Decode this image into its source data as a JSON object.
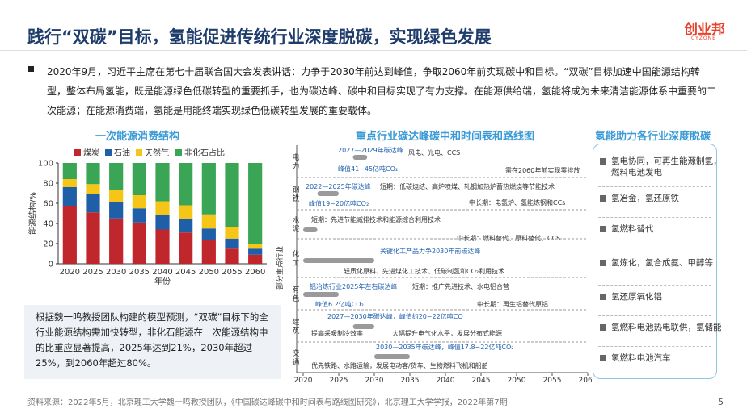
{
  "header": {
    "title": "践行“双碳”目标，氢能促进传统行业深度脱碳，实现绿色发展",
    "logo": "创业邦",
    "logo_sub": "CYZONE"
  },
  "intro": "2020年9月，习近平主席在第七十届联合国大会发表讲话：力争于2030年前达到峰值，争取2060年前实现碳中和目标。“双碳”目标加速中国能源结构转型，整体布局氢能，既是能源绿色低碳转型的重要抓手，也为碳达峰、碳中和目标实现了有力支撑。在能源供给端，氢能将成为未来清洁能源体系中重要的二次能源；在能源消费端，氢能是用能终端实现绿色低碳转型发展的重要载体。",
  "chart_data": {
    "type": "stacked_bar",
    "title": "一次能源消费结构",
    "x_label": "年份",
    "y_label": "能源结构/%",
    "categories": [
      "2020",
      "2025",
      "2030",
      "2035",
      "2040",
      "2045",
      "2050",
      "2055",
      "2060"
    ],
    "series": [
      {
        "name": "煤炭",
        "color": "#c0272d",
        "values": [
          57,
          51,
          45,
          41,
          34,
          31,
          24,
          15,
          9
        ]
      },
      {
        "name": "石油",
        "color": "#1f5fa8",
        "values": [
          19,
          18,
          16,
          14,
          14,
          13,
          11,
          10,
          6
        ]
      },
      {
        "name": "天然气",
        "color": "#f5c518",
        "values": [
          8,
          10,
          12,
          13,
          14,
          14,
          14,
          11,
          5
        ]
      },
      {
        "name": "非化石占比",
        "color": "#3aa655",
        "values": [
          16,
          21,
          27,
          32,
          38,
          42,
          51,
          64,
          80
        ]
      }
    ],
    "ylim": [
      0,
      100
    ],
    "yticks": [
      0,
      20,
      40,
      60,
      80,
      100
    ]
  },
  "note": "根据魏一鸣教授团队构建的模型预测，“双碳”目标下的全行业能源结构需加快转型，非化石能源在一次能源结构中的比重应显著提高，2025年达到21%，2030年超过25%，到2060年超过80%。",
  "roadmap": {
    "title": "重点行业碳达峰碳中和时间表和路线图",
    "y_label": "部分重点行业",
    "xticks": [
      2020,
      2025,
      2030,
      2035,
      2040,
      2045,
      2050,
      2055,
      2060
    ],
    "rows": [
      {
        "label": "电力",
        "texts": [
          "2027—2029年碳达峰",
          "风电、光电、CCS",
          "峰值41~45亿吨CO₂",
          "需在2060年前实现零排放"
        ]
      },
      {
        "label": "钢铁",
        "texts": [
          "2022—2025年碳达峰",
          "短期：低碳烧结、高炉喷煤、轧钢加热炉蓄热燃烧等节能技术",
          "峰值19~20亿吨CO₂",
          "中长期：电氢炉、氢能炼钢和CCs"
        ]
      },
      {
        "label": "水泥",
        "texts": [
          "短期：先进节能减排技术和能源综合利用技术",
          "中长期：燃料替代、原料替代、CCS"
        ]
      },
      {
        "label": "化工",
        "texts": [
          "关键化工产品力争2030年前碳达峰",
          "轻质化原料、先进煤化工技术、低碳制氢和CO₂利用技术"
        ]
      },
      {
        "label": "有色",
        "texts": [
          "铝冶炼行业2025年左右碳达峰",
          "短期：推广先进技术、水电铝合营",
          "峰值6.2亿吨CO₂",
          "中长期：再生铝替代原铝"
        ]
      },
      {
        "label": "建筑",
        "texts": [
          "2027—2030年碳达峰，峰值约20~22亿吨CO",
          "提高采暖制冷效率",
          "大幅提升电气化水平，发展分布式能源"
        ]
      },
      {
        "label": "交通",
        "texts": [
          "2030—2035年碳达峰，峰值17.8~22亿吨CO₂",
          "优先铁路、水路运输，发展电动客/货车、生物燃料飞机和船舶"
        ]
      }
    ]
  },
  "hydrogen": {
    "title": "氢能助力各行业深度脱碳",
    "items": [
      "氢电协同，可再生能源制氢，燃料电池发电",
      "氢冶金，氢还原铁",
      "氢燃料替代",
      "氢炼化，氢合成氨、甲醇等",
      "氢还原氧化铝",
      "氢燃料电池热电联供，氢储能",
      "氢燃料电池汽车"
    ]
  },
  "footer": {
    "source": "资料来源：2022年5月，北京理工大学魏一鸣教授团队，《中国碳达峰碳中和时间表与路线图研究》，北京理工大学学报，2022年第7期",
    "page": "5"
  }
}
